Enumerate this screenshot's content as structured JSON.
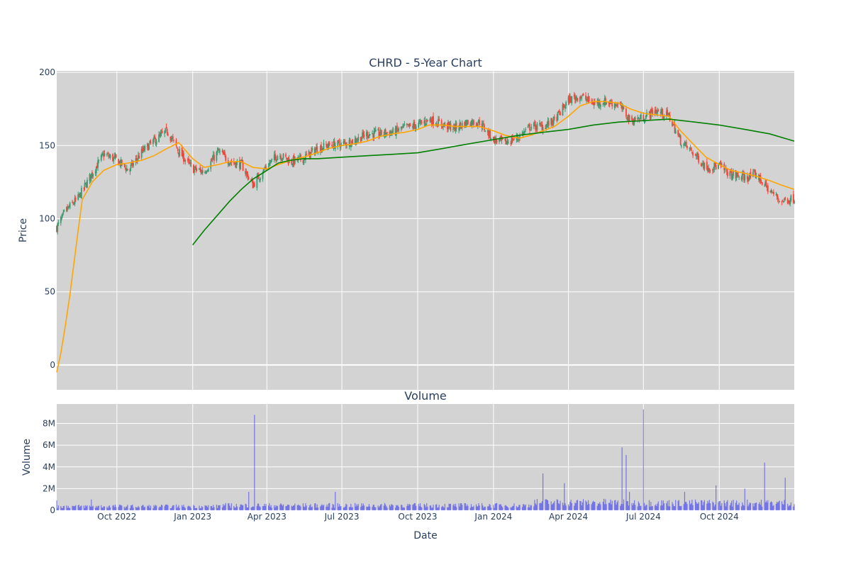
{
  "chart_data": [
    {
      "type": "candlestick",
      "title": "CHRD - 5-Year Chart",
      "xlabel": "",
      "ylabel": "Price",
      "ylim": [
        -17,
        201
      ],
      "yticks": [
        0,
        50,
        100,
        150,
        200
      ],
      "xlim": [
        "2022-07-20",
        "2024-12-31"
      ],
      "grid": true,
      "legend": "none",
      "colors": {
        "increasing": "#3d9970",
        "decreasing": "#ff4136",
        "sma_short": "#ffa500",
        "sma_long": "#008000",
        "plot_bg": "#d3d3d3"
      },
      "ohlc_points": [
        [
          "2022-07-20",
          94
        ],
        [
          "2022-08-01",
          106
        ],
        [
          "2022-08-15",
          114
        ],
        [
          "2022-09-01",
          131
        ],
        [
          "2022-09-15",
          144
        ],
        [
          "2022-10-01",
          140
        ],
        [
          "2022-10-15",
          133
        ],
        [
          "2022-11-01",
          146
        ],
        [
          "2022-11-15",
          153
        ],
        [
          "2022-12-01",
          160
        ],
        [
          "2022-12-15",
          146
        ],
        [
          "2023-01-01",
          134
        ],
        [
          "2023-01-15",
          132
        ],
        [
          "2023-02-01",
          146
        ],
        [
          "2023-02-15",
          139
        ],
        [
          "2023-03-01",
          137
        ],
        [
          "2023-03-15",
          123
        ],
        [
          "2023-04-01",
          136
        ],
        [
          "2023-04-15",
          144
        ],
        [
          "2023-05-01",
          139
        ],
        [
          "2023-05-15",
          141
        ],
        [
          "2023-06-01",
          148
        ],
        [
          "2023-06-15",
          150
        ],
        [
          "2023-07-01",
          151
        ],
        [
          "2023-07-15",
          153
        ],
        [
          "2023-08-01",
          158
        ],
        [
          "2023-08-15",
          158
        ],
        [
          "2023-09-01",
          159
        ],
        [
          "2023-09-15",
          162
        ],
        [
          "2023-10-01",
          164
        ],
        [
          "2023-10-15",
          168
        ],
        [
          "2023-11-01",
          164
        ],
        [
          "2023-11-15",
          162
        ],
        [
          "2023-12-01",
          166
        ],
        [
          "2023-12-15",
          166
        ],
        [
          "2024-01-01",
          154
        ],
        [
          "2024-01-15",
          152
        ],
        [
          "2024-02-01",
          156
        ],
        [
          "2024-02-15",
          163
        ],
        [
          "2024-03-01",
          163
        ],
        [
          "2024-03-15",
          167
        ],
        [
          "2024-04-01",
          181
        ],
        [
          "2024-04-15",
          184
        ],
        [
          "2024-05-01",
          179
        ],
        [
          "2024-05-15",
          180
        ],
        [
          "2024-06-01",
          178
        ],
        [
          "2024-06-15",
          167
        ],
        [
          "2024-07-01",
          169
        ],
        [
          "2024-07-15",
          174
        ],
        [
          "2024-08-01",
          170
        ],
        [
          "2024-08-15",
          153
        ],
        [
          "2024-09-01",
          144
        ],
        [
          "2024-09-15",
          135
        ],
        [
          "2024-10-01",
          136
        ],
        [
          "2024-10-15",
          130
        ],
        [
          "2024-11-01",
          128
        ],
        [
          "2024-11-15",
          130
        ],
        [
          "2024-12-01",
          119
        ],
        [
          "2024-12-15",
          112
        ],
        [
          "2024-12-31",
          114
        ]
      ],
      "sma_short": [
        [
          "2022-07-20",
          -5
        ],
        [
          "2022-07-25",
          8
        ],
        [
          "2022-07-30",
          25
        ],
        [
          "2022-08-05",
          48
        ],
        [
          "2022-08-10",
          70
        ],
        [
          "2022-08-15",
          92
        ],
        [
          "2022-08-20",
          113
        ],
        [
          "2022-09-01",
          125
        ],
        [
          "2022-09-15",
          133
        ],
        [
          "2022-10-01",
          137
        ],
        [
          "2022-10-15",
          138
        ],
        [
          "2022-11-01",
          140
        ],
        [
          "2022-11-15",
          143
        ],
        [
          "2022-12-01",
          148
        ],
        [
          "2022-12-15",
          152
        ],
        [
          "2023-01-01",
          141
        ],
        [
          "2023-01-15",
          135
        ],
        [
          "2023-02-01",
          137
        ],
        [
          "2023-02-15",
          139
        ],
        [
          "2023-03-01",
          139
        ],
        [
          "2023-03-15",
          135
        ],
        [
          "2023-04-01",
          134
        ],
        [
          "2023-04-15",
          137
        ],
        [
          "2023-05-01",
          140
        ],
        [
          "2023-05-15",
          142
        ],
        [
          "2023-06-01",
          145
        ],
        [
          "2023-06-15",
          148
        ],
        [
          "2023-07-01",
          150
        ],
        [
          "2023-07-15",
          151
        ],
        [
          "2023-08-01",
          153
        ],
        [
          "2023-08-15",
          156
        ],
        [
          "2023-09-01",
          158
        ],
        [
          "2023-09-15",
          159
        ],
        [
          "2023-10-01",
          161
        ],
        [
          "2023-10-15",
          164
        ],
        [
          "2023-11-01",
          164
        ],
        [
          "2023-11-15",
          163
        ],
        [
          "2023-12-01",
          163
        ],
        [
          "2023-12-15",
          163
        ],
        [
          "2024-01-01",
          160
        ],
        [
          "2024-01-15",
          157
        ],
        [
          "2024-02-01",
          155
        ],
        [
          "2024-02-15",
          157
        ],
        [
          "2024-03-01",
          160
        ],
        [
          "2024-03-15",
          163
        ],
        [
          "2024-04-01",
          170
        ],
        [
          "2024-04-15",
          177
        ],
        [
          "2024-05-01",
          180
        ],
        [
          "2024-05-15",
          180
        ],
        [
          "2024-06-01",
          179
        ],
        [
          "2024-06-15",
          175
        ],
        [
          "2024-07-01",
          172
        ],
        [
          "2024-07-15",
          171
        ],
        [
          "2024-08-01",
          170
        ],
        [
          "2024-08-15",
          160
        ],
        [
          "2024-09-01",
          150
        ],
        [
          "2024-09-15",
          142
        ],
        [
          "2024-10-01",
          137
        ],
        [
          "2024-10-15",
          133
        ],
        [
          "2024-11-01",
          131
        ],
        [
          "2024-11-15",
          129
        ],
        [
          "2024-12-01",
          126
        ],
        [
          "2024-12-15",
          123
        ],
        [
          "2024-12-31",
          120
        ]
      ],
      "sma_long": [
        [
          "2023-01-01",
          82
        ],
        [
          "2023-01-15",
          92
        ],
        [
          "2023-02-01",
          103
        ],
        [
          "2023-02-15",
          112
        ],
        [
          "2023-03-01",
          120
        ],
        [
          "2023-03-15",
          127
        ],
        [
          "2023-04-01",
          133
        ],
        [
          "2023-04-15",
          138
        ],
        [
          "2023-05-01",
          140
        ],
        [
          "2023-05-15",
          141
        ],
        [
          "2023-06-01",
          141
        ],
        [
          "2023-07-01",
          142
        ],
        [
          "2023-08-01",
          143
        ],
        [
          "2023-09-01",
          144
        ],
        [
          "2023-10-01",
          145
        ],
        [
          "2023-11-01",
          148
        ],
        [
          "2023-12-01",
          151
        ],
        [
          "2024-01-01",
          154
        ],
        [
          "2024-02-01",
          157
        ],
        [
          "2024-03-01",
          159
        ],
        [
          "2024-04-01",
          161
        ],
        [
          "2024-05-01",
          164
        ],
        [
          "2024-06-01",
          166
        ],
        [
          "2024-07-01",
          167
        ],
        [
          "2024-08-01",
          168
        ],
        [
          "2024-09-01",
          166
        ],
        [
          "2024-10-01",
          164
        ],
        [
          "2024-11-01",
          161
        ],
        [
          "2024-12-01",
          158
        ],
        [
          "2024-12-31",
          153
        ]
      ]
    },
    {
      "type": "bar",
      "title": "Volume",
      "xlabel": "Date",
      "ylabel": "Volume",
      "ylim": [
        0,
        9800000
      ],
      "yticks": [
        0,
        2000000,
        4000000,
        6000000,
        8000000
      ],
      "ytick_labels": [
        "0",
        "2M",
        "4M",
        "6M",
        "8M"
      ],
      "xlim": [
        "2022-07-20",
        "2024-12-31"
      ],
      "xticks": [
        "2022-10-01",
        "2023-01-01",
        "2023-04-01",
        "2023-07-01",
        "2023-10-01",
        "2024-01-01",
        "2024-04-01",
        "2024-07-01",
        "2024-10-01"
      ],
      "xtick_labels": [
        "Oct 2022",
        "Jan 2023",
        "Apr 2023",
        "Jul 2023",
        "Oct 2023",
        "Jan 2024",
        "Apr 2024",
        "Jul 2024",
        "Oct 2024"
      ],
      "grid": true,
      "legend": "none",
      "colors": {
        "bar": "#0000ff",
        "plot_bg": "#d3d3d3"
      },
      "spikes": [
        [
          "2022-07-20",
          900000
        ],
        [
          "2022-08-31",
          1000000
        ],
        [
          "2023-03-10",
          1700000
        ],
        [
          "2023-03-17",
          8800000
        ],
        [
          "2023-06-23",
          1700000
        ],
        [
          "2024-03-01",
          3400000
        ],
        [
          "2024-03-27",
          2500000
        ],
        [
          "2024-06-05",
          5800000
        ],
        [
          "2024-06-10",
          5100000
        ],
        [
          "2024-06-14",
          1700000
        ],
        [
          "2024-07-01",
          9300000
        ],
        [
          "2024-08-20",
          1700000
        ],
        [
          "2024-09-27",
          2300000
        ],
        [
          "2024-11-01",
          2000000
        ],
        [
          "2024-11-25",
          4400000
        ],
        [
          "2024-12-20",
          3000000
        ]
      ],
      "baseline_segments": [
        [
          "2022-07-20",
          "2023-02-01",
          400000
        ],
        [
          "2023-02-01",
          "2024-02-15",
          500000
        ],
        [
          "2024-02-15",
          "2024-06-01",
          800000
        ],
        [
          "2024-06-01",
          "2024-12-31",
          750000
        ]
      ]
    }
  ]
}
